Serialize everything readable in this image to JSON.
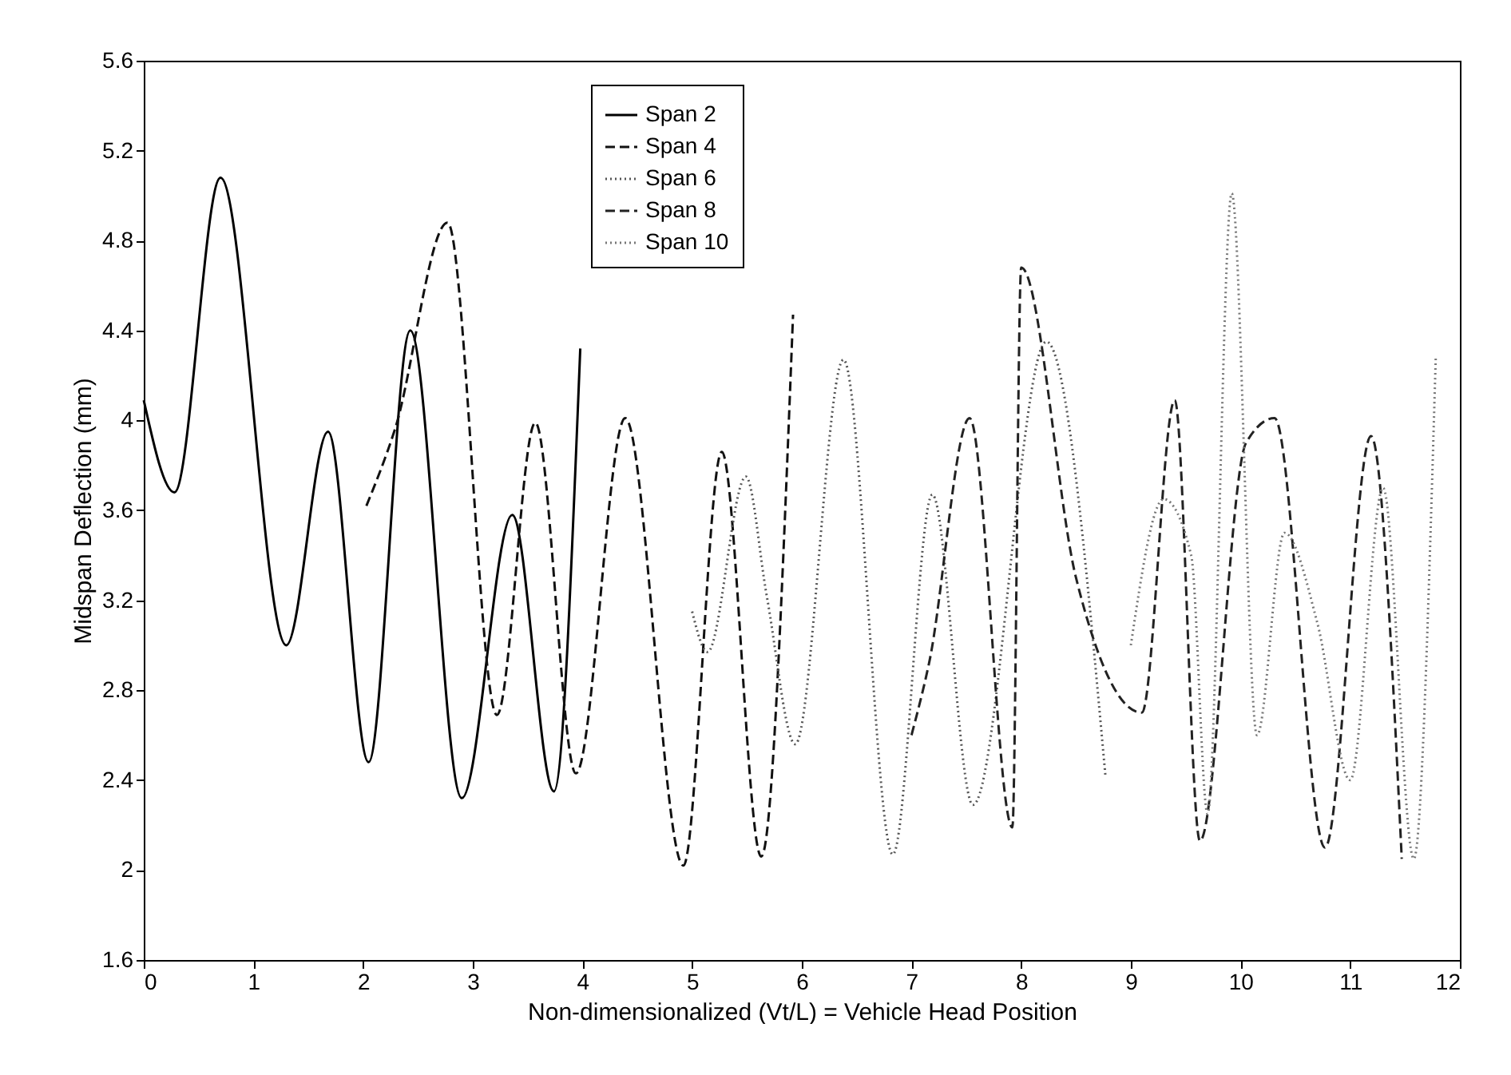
{
  "chart_data": {
    "type": "line",
    "xlabel": "Non-dimensionalized (Vt/L) = Vehicle Head Position",
    "ylabel": "Midspan Deflection (mm)",
    "xlim": [
      0,
      12
    ],
    "xticks": [
      0,
      1,
      2,
      3,
      4,
      5,
      6,
      7,
      8,
      9,
      10,
      11,
      12
    ],
    "ylim": [
      1.6,
      5.6
    ],
    "yticks": [
      1.6,
      2,
      2.4,
      2.8,
      3.2,
      3.6,
      4,
      4.4,
      4.8,
      5.2,
      5.6
    ],
    "grid": false,
    "legend": "top",
    "marker": "none",
    "series": [
      {
        "name": "Span 2",
        "color": "#000000",
        "line_style": "solid",
        "x": [
          0,
          0.28,
          0.7,
          1.3,
          1.68,
          2.05,
          2.43,
          2.9,
          3.36,
          3.74,
          3.98
        ],
        "values": [
          4.09,
          3.68,
          5.08,
          3.0,
          3.95,
          2.48,
          4.4,
          2.32,
          3.58,
          2.35,
          4.32
        ]
      },
      {
        "name": "Span 4",
        "color": "#111111",
        "line_style": "dashed",
        "x": [
          2.03,
          2.29,
          2.77,
          3.22,
          3.57,
          3.94,
          4.39,
          4.92,
          5.27,
          5.63,
          5.92
        ],
        "values": [
          3.62,
          3.96,
          4.88,
          2.69,
          3.99,
          2.43,
          4.01,
          2.02,
          3.86,
          2.06,
          4.47
        ]
      },
      {
        "name": "Span 6",
        "color": "#555555",
        "line_style": "dotted",
        "x": [
          5.0,
          5.14,
          5.49,
          5.68,
          5.94,
          6.38,
          6.83,
          7.19,
          7.56,
          8.23,
          8.77
        ],
        "values": [
          3.15,
          2.97,
          3.75,
          3.22,
          2.56,
          4.27,
          2.07,
          3.67,
          2.29,
          4.35,
          2.41
        ]
      },
      {
        "name": "Span 8",
        "color": "#222222",
        "line_style": "dashed",
        "x": [
          7.0,
          7.16,
          7.53,
          7.92,
          8.0,
          8.5,
          9.1,
          9.4,
          9.63,
          10.05,
          10.31,
          10.77,
          11.19,
          11.47
        ],
        "values": [
          2.6,
          2.92,
          4.01,
          2.19,
          4.68,
          3.3,
          2.7,
          4.09,
          2.13,
          3.9,
          4.01,
          2.1,
          3.93,
          2.05
        ]
      },
      {
        "name": "Span 10",
        "color": "#777777",
        "line_style": "dotted",
        "x": [
          9.0,
          9.3,
          9.55,
          9.7,
          9.92,
          10.15,
          10.4,
          10.7,
          11.0,
          11.3,
          11.58,
          11.78
        ],
        "values": [
          3.0,
          3.65,
          3.4,
          2.25,
          5.01,
          2.6,
          3.5,
          3.1,
          2.4,
          3.7,
          2.05,
          4.28
        ]
      }
    ]
  }
}
